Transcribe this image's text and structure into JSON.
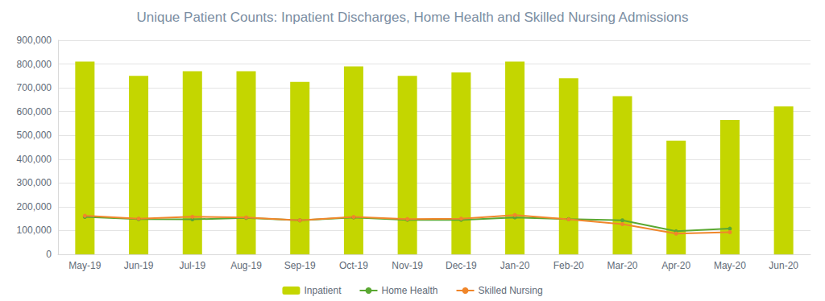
{
  "chart_data": {
    "type": "bar",
    "title": "Unique Patient Counts: Inpatient Discharges, Home Health and Skilled Nursing Admissions",
    "categories": [
      "May-19",
      "Jun-19",
      "Jul-19",
      "Aug-19",
      "Sep-19",
      "Oct-19",
      "Nov-19",
      "Dec-19",
      "Jan-20",
      "Feb-20",
      "Mar-20",
      "Apr-20",
      "May-20",
      "Jun-20"
    ],
    "series": [
      {
        "name": "Inpatient",
        "type": "bar",
        "color": "#c4d600",
        "values": [
          810000,
          750000,
          770000,
          770000,
          725000,
          790000,
          750000,
          765000,
          810000,
          740000,
          665000,
          478000,
          565000,
          622000
        ]
      },
      {
        "name": "Home Health",
        "type": "line",
        "color": "#5aa832",
        "marker": "circle",
        "values": [
          157000,
          148000,
          147000,
          153000,
          143000,
          155000,
          145000,
          145000,
          155000,
          148000,
          143000,
          97000,
          108000,
          null
        ]
      },
      {
        "name": "Skilled Nursing",
        "type": "line",
        "color": "#f0862a",
        "marker": "circle",
        "values": [
          162000,
          150000,
          158000,
          155000,
          143000,
          157000,
          148000,
          150000,
          165000,
          147000,
          127000,
          87000,
          93000,
          null
        ]
      }
    ],
    "ylim": [
      0,
      900000
    ],
    "yticks": [
      0,
      {
        "value": 100000,
        "label": "100,000"
      },
      {
        "value": 200000,
        "label": "200,000"
      },
      {
        "value": 300000,
        "label": "300,000"
      },
      {
        "value": 400000,
        "label": "400,000"
      },
      {
        "value": 500000,
        "label": "500,000"
      },
      {
        "value": 600000,
        "label": "600,000"
      },
      {
        "value": 700000,
        "label": "700,000"
      },
      {
        "value": 800000,
        "label": "800,000"
      },
      {
        "value": 900000,
        "label": "900,000"
      }
    ],
    "grid": true,
    "legend": "bottom"
  }
}
